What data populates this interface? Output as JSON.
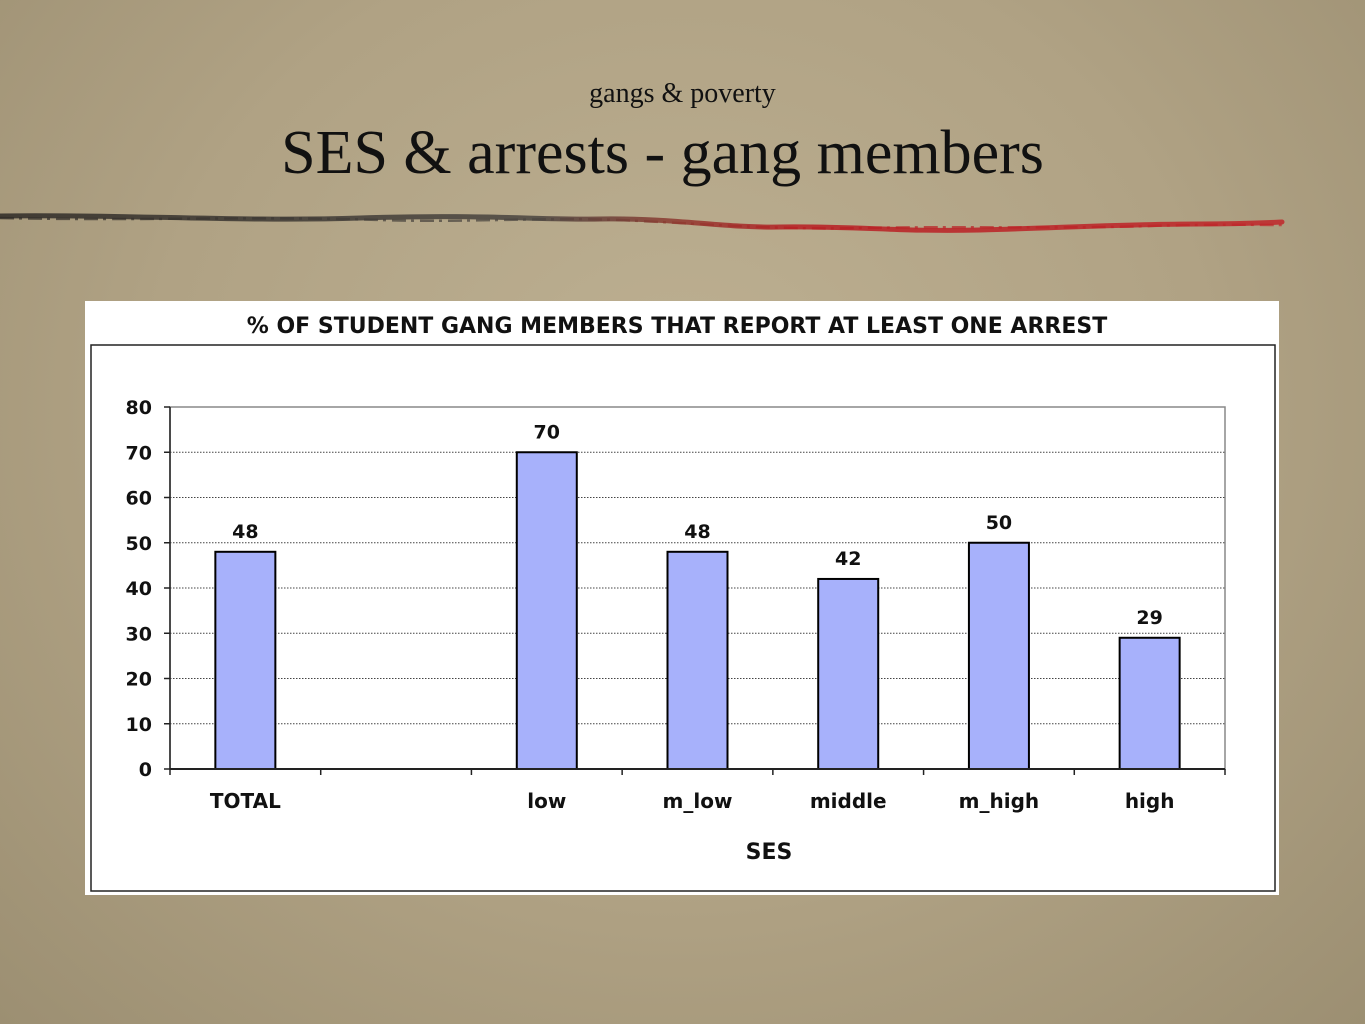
{
  "slide": {
    "subtitle": "gangs & poverty",
    "title": "SES & arrests - gang members"
  },
  "colors": {
    "bar_fill": "#a7b1fb",
    "bar_stroke": "#000000",
    "divider_left": "#3a3530",
    "divider_right": "#b81d22"
  },
  "chart_data": {
    "type": "bar",
    "title": "% OF STUDENT GANG MEMBERS THAT REPORT AT LEAST ONE ARREST",
    "xlabel": "SES",
    "ylabel": "",
    "categories": [
      "TOTAL",
      "",
      "low",
      "m_low",
      "middle",
      "m_high",
      "high"
    ],
    "values": [
      48,
      null,
      70,
      48,
      42,
      50,
      29
    ],
    "data_labels": [
      "48",
      "",
      "70",
      "48",
      "42",
      "50",
      "29"
    ],
    "ylim": [
      0,
      80
    ],
    "yticks": [
      0,
      10,
      20,
      30,
      40,
      50,
      60,
      70,
      80
    ],
    "grid": true,
    "legend": "none"
  }
}
